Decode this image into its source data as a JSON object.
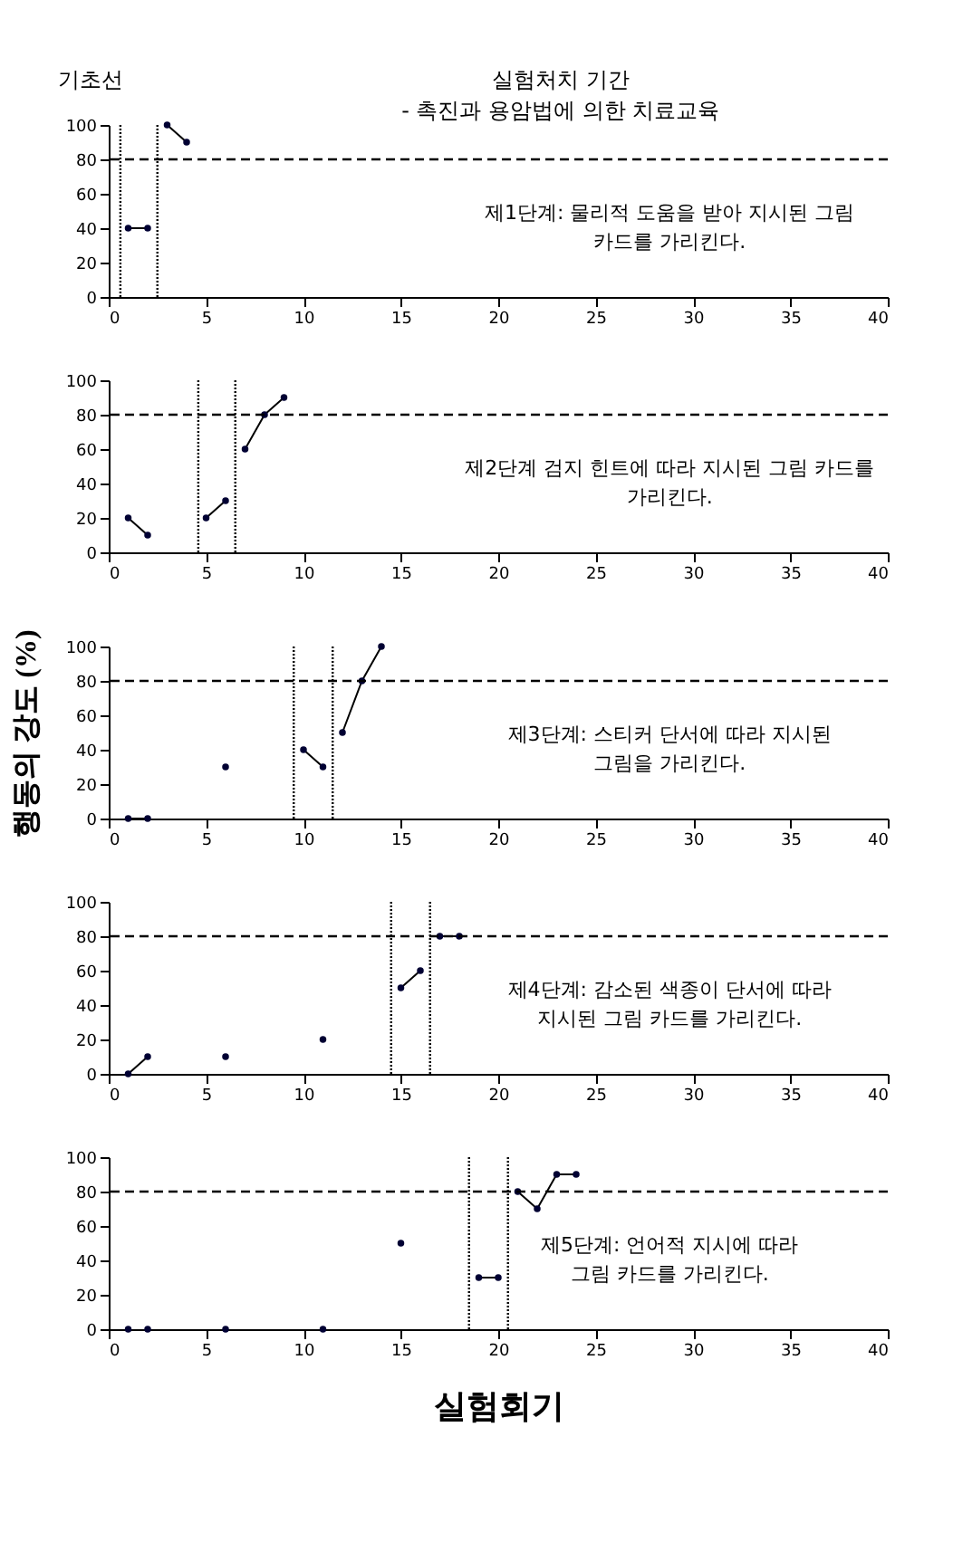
{
  "chart_data": [
    {
      "type": "line",
      "marker": "circle",
      "line_style": "solid",
      "grid": false,
      "legend": false,
      "xlim": [
        0,
        40
      ],
      "xticks": [
        0,
        5,
        10,
        15,
        20,
        25,
        30,
        35,
        40
      ],
      "ylim": [
        0,
        100
      ],
      "yticks": [
        0,
        20,
        40,
        60,
        80,
        100
      ],
      "series": [
        {
          "color": "#000033",
          "x": [
            1,
            2
          ],
          "values": [
            40,
            40
          ]
        },
        {
          "color": "#000033",
          "x": [
            3,
            4
          ],
          "values": [
            100,
            90
          ]
        }
      ],
      "ref_lines": [
        {
          "axis": "y",
          "value": 80,
          "line_style": "dashed",
          "color": "#000000"
        },
        {
          "axis": "x",
          "value": 0.6,
          "line_style": "dotted",
          "color": "#000000"
        },
        {
          "axis": "x",
          "value": 2.5,
          "line_style": "dotted",
          "color": "#000000"
        }
      ],
      "annotations": [
        "기초선",
        "실험처치 기간\n- 촉진과 용암법에 의한 치료교육",
        "제1단계:  물리적 도움을 받아 지시된 그림\n카드를 가리킨다."
      ]
    },
    {
      "type": "line",
      "marker": "circle",
      "line_style": "solid",
      "grid": false,
      "legend": false,
      "xlim": [
        0,
        40
      ],
      "xticks": [
        0,
        5,
        10,
        15,
        20,
        25,
        30,
        35,
        40
      ],
      "ylim": [
        0,
        100
      ],
      "yticks": [
        0,
        20,
        40,
        60,
        80,
        100
      ],
      "series": [
        {
          "color": "#000033",
          "x": [
            1,
            2
          ],
          "values": [
            20,
            10
          ]
        },
        {
          "color": "#000033",
          "x": [
            5,
            6
          ],
          "values": [
            20,
            30
          ]
        },
        {
          "color": "#000033",
          "x": [
            7,
            8,
            9
          ],
          "values": [
            60,
            80,
            90
          ]
        }
      ],
      "ref_lines": [
        {
          "axis": "y",
          "value": 80,
          "line_style": "dashed",
          "color": "#000000"
        },
        {
          "axis": "x",
          "value": 4.6,
          "line_style": "dotted",
          "color": "#000000"
        },
        {
          "axis": "x",
          "value": 6.5,
          "line_style": "dotted",
          "color": "#000000"
        }
      ],
      "annotations": [
        "제2단계 검지 힌트에 따라 지시된 그림 카드를\n가리킨다."
      ]
    },
    {
      "type": "line",
      "marker": "circle",
      "line_style": "solid",
      "grid": false,
      "legend": false,
      "xlim": [
        0,
        40
      ],
      "xticks": [
        0,
        5,
        10,
        15,
        20,
        25,
        30,
        35,
        40
      ],
      "ylim": [
        0,
        100
      ],
      "yticks": [
        0,
        20,
        40,
        60,
        80,
        100
      ],
      "ylabel": "행동의 강도 (%)",
      "series": [
        {
          "color": "#000033",
          "x": [
            1,
            2
          ],
          "values": [
            0,
            0
          ]
        },
        {
          "color": "#000033",
          "x": [
            6
          ],
          "values": [
            30
          ]
        },
        {
          "color": "#000033",
          "x": [
            10,
            11
          ],
          "values": [
            40,
            30
          ]
        },
        {
          "color": "#000033",
          "x": [
            12,
            13,
            14
          ],
          "values": [
            50,
            80,
            100
          ]
        }
      ],
      "ref_lines": [
        {
          "axis": "y",
          "value": 80,
          "line_style": "dashed",
          "color": "#000000"
        },
        {
          "axis": "x",
          "value": 9.5,
          "line_style": "dotted",
          "color": "#000000"
        },
        {
          "axis": "x",
          "value": 11.5,
          "line_style": "dotted",
          "color": "#000000"
        }
      ],
      "annotations": [
        "제3단계:  스티커 단서에 따라 지시된\n그림을 가리킨다."
      ]
    },
    {
      "type": "line",
      "marker": "circle",
      "line_style": "solid",
      "grid": false,
      "legend": false,
      "xlim": [
        0,
        40
      ],
      "xticks": [
        0,
        5,
        10,
        15,
        20,
        25,
        30,
        35,
        40
      ],
      "ylim": [
        0,
        100
      ],
      "yticks": [
        0,
        20,
        40,
        60,
        80,
        100
      ],
      "series": [
        {
          "color": "#000033",
          "x": [
            1,
            2
          ],
          "values": [
            0,
            10
          ]
        },
        {
          "color": "#000033",
          "x": [
            6
          ],
          "values": [
            10
          ]
        },
        {
          "color": "#000033",
          "x": [
            11
          ],
          "values": [
            20
          ]
        },
        {
          "color": "#000033",
          "x": [
            15,
            16
          ],
          "values": [
            50,
            60
          ]
        },
        {
          "color": "#000033",
          "x": [
            17,
            18
          ],
          "values": [
            80,
            80
          ]
        }
      ],
      "ref_lines": [
        {
          "axis": "y",
          "value": 80,
          "line_style": "dashed",
          "color": "#000000"
        },
        {
          "axis": "x",
          "value": 14.5,
          "line_style": "dotted",
          "color": "#000000"
        },
        {
          "axis": "x",
          "value": 16.5,
          "line_style": "dotted",
          "color": "#000000"
        }
      ],
      "annotations": [
        "제4단계:  감소된 색종이 단서에 따라\n지시된 그림 카드를 가리킨다."
      ]
    },
    {
      "type": "line",
      "marker": "circle",
      "line_style": "solid",
      "grid": false,
      "legend": false,
      "xlim": [
        0,
        40
      ],
      "xticks": [
        0,
        5,
        10,
        15,
        20,
        25,
        30,
        35,
        40
      ],
      "ylim": [
        0,
        100
      ],
      "yticks": [
        0,
        20,
        40,
        60,
        80,
        100
      ],
      "xlabel": "실험회기",
      "series": [
        {
          "color": "#000033",
          "x": [
            1
          ],
          "values": [
            0
          ]
        },
        {
          "color": "#000033",
          "x": [
            2
          ],
          "values": [
            0
          ]
        },
        {
          "color": "#000033",
          "x": [
            6
          ],
          "values": [
            0
          ]
        },
        {
          "color": "#000033",
          "x": [
            11
          ],
          "values": [
            0
          ]
        },
        {
          "color": "#000033",
          "x": [
            15
          ],
          "values": [
            50
          ]
        },
        {
          "color": "#000033",
          "x": [
            19,
            20
          ],
          "values": [
            30,
            30
          ]
        },
        {
          "color": "#000033",
          "x": [
            21,
            22,
            23,
            24
          ],
          "values": [
            80,
            70,
            90,
            90
          ]
        }
      ],
      "ref_lines": [
        {
          "axis": "y",
          "value": 80,
          "line_style": "dashed",
          "color": "#000000"
        },
        {
          "axis": "x",
          "value": 18.5,
          "line_style": "dotted",
          "color": "#000000"
        },
        {
          "axis": "x",
          "value": 20.5,
          "line_style": "dotted",
          "color": "#000000"
        }
      ],
      "annotations": [
        "제5단계:  언어적 지시에 따라\n그림 카드를 가리킨다."
      ]
    }
  ]
}
